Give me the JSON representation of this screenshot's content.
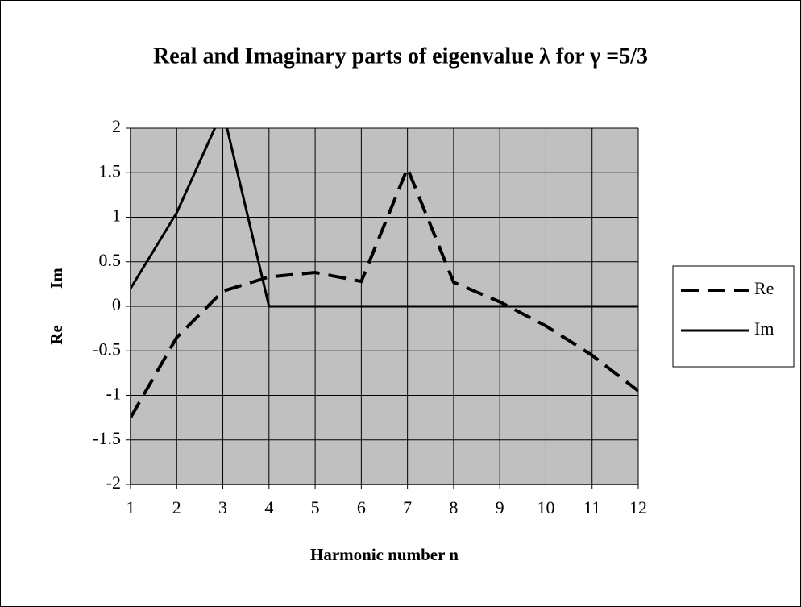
{
  "chart_data": {
    "type": "line",
    "title": "Real and Imaginary parts of eigenvalue λ for γ =5/3",
    "xlabel": "Harmonic number n",
    "ylabel": "Re Im",
    "categories": [
      "1",
      "2",
      "3",
      "4",
      "5",
      "6",
      "7",
      "8",
      "9",
      "10",
      "11",
      "12"
    ],
    "series": [
      {
        "name": "Re",
        "color": "#000000",
        "dash": true,
        "values": [
          -1.25,
          -0.35,
          0.17,
          0.33,
          0.38,
          0.28,
          1.55,
          0.27,
          0.05,
          -0.22,
          -0.55,
          -0.95
        ]
      },
      {
        "name": "Im",
        "color": "#000000",
        "dash": false,
        "values": [
          0.2,
          1.05,
          2.2,
          0,
          0,
          0,
          0,
          0,
          0,
          0,
          0,
          0
        ]
      }
    ],
    "ylim": [
      -2,
      2
    ],
    "yticks": [
      -2,
      -1.5,
      -1,
      -0.5,
      0,
      0.5,
      1,
      1.5,
      2
    ],
    "grid": true,
    "legend": "right"
  }
}
